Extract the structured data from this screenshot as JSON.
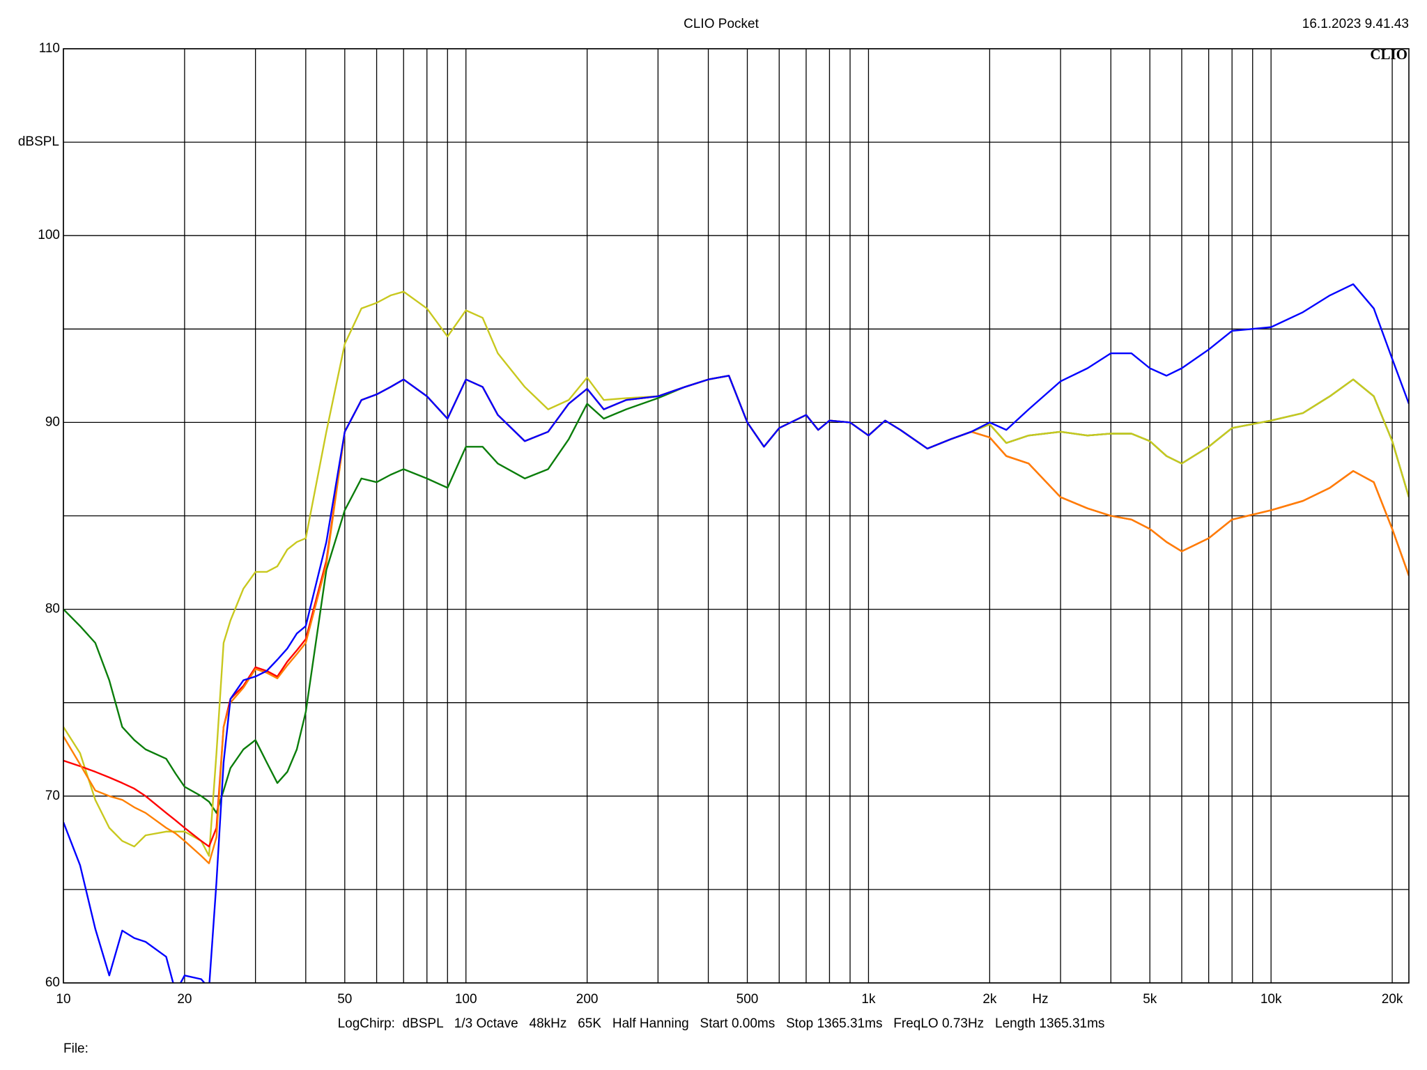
{
  "chart_data": {
    "type": "line",
    "title": "CLIO Pocket",
    "timestamp": "16.1.2023 9.41.43",
    "logo": "CLIO",
    "ylabel": "dBSPL",
    "xlabel": "Hz",
    "footer": "LogChirp:  dBSPL   1/3 Octave   48kHz   65K   Half Hanning   Start 0.00ms   Stop 1365.31ms   FreqLO 0.73Hz   Length 1365.31ms",
    "file_label": "File:",
    "xscale": "log",
    "grid": true,
    "xlim": [
      10,
      22000
    ],
    "ylim": [
      60,
      110
    ],
    "xticks": [
      10,
      20,
      50,
      100,
      200,
      500,
      {
        "value": 1000,
        "label": "1k"
      },
      {
        "value": 2000,
        "label": "2k"
      },
      {
        "value": 5000,
        "label": "5k"
      },
      {
        "value": 10000,
        "label": "10k"
      },
      {
        "value": 20000,
        "label": "20k"
      }
    ],
    "xgrid_minor": [
      30,
      40,
      60,
      70,
      80,
      90,
      300,
      400,
      600,
      700,
      800,
      900,
      3000,
      4000,
      6000,
      7000,
      8000,
      9000
    ],
    "yticks": [
      60,
      70,
      80,
      90,
      100,
      110
    ],
    "ygrid_minor": [
      65,
      75,
      85,
      95,
      105
    ],
    "x": [
      10,
      11,
      12,
      13,
      14,
      15,
      16,
      18,
      19,
      20,
      22,
      23,
      24,
      25,
      26,
      28,
      30,
      32,
      34,
      36,
      38,
      40,
      45,
      50,
      55,
      60,
      65,
      70,
      80,
      90,
      100,
      110,
      120,
      140,
      160,
      180,
      200,
      220,
      250,
      300,
      350,
      400,
      450,
      500,
      550,
      600,
      700,
      750,
      800,
      900,
      1000,
      1100,
      1200,
      1400,
      1600,
      1800,
      2000,
      2200,
      2500,
      3000,
      3500,
      4000,
      4500,
      5000,
      5500,
      6000,
      7000,
      8000,
      10000,
      12000,
      14000,
      16000,
      18000,
      20000,
      22000
    ],
    "series": [
      {
        "color": "#0a7d0a",
        "values": [
          80.0,
          79.1,
          78.2,
          76.2,
          73.7,
          73.0,
          72.5,
          72.0,
          71.2,
          70.5,
          70.0,
          69.7,
          69.1,
          70.3,
          71.5,
          72.5,
          73.0,
          71.8,
          70.7,
          71.3,
          72.5,
          74.5,
          82.1,
          85.3,
          87.0,
          86.8,
          87.2,
          87.5,
          87.0,
          86.5,
          88.7,
          88.7,
          87.8,
          87.0,
          87.5,
          89.1,
          91.0,
          90.2,
          90.7,
          91.3,
          91.9,
          92.3,
          92.5,
          90.0,
          88.7,
          89.7,
          90.4,
          89.6,
          90.1,
          90.0,
          89.3,
          90.1,
          89.6,
          88.6,
          89.1,
          89.5,
          89.9,
          88.9,
          89.3,
          89.5,
          89.3,
          89.4,
          89.4,
          89.0,
          88.2,
          87.8,
          88.7,
          89.7,
          90.1,
          90.5,
          91.4,
          92.3,
          91.4,
          89.0,
          86.0
        ]
      },
      {
        "color": "#c8c81e",
        "values": [
          73.7,
          72.3,
          69.8,
          68.3,
          67.6,
          67.3,
          67.9,
          68.1,
          68.1,
          68.1,
          67.6,
          66.8,
          72.3,
          78.2,
          79.4,
          81.1,
          82.0,
          82.0,
          82.3,
          83.2,
          83.6,
          83.8,
          89.5,
          94.2,
          96.1,
          96.4,
          96.8,
          97.0,
          96.1,
          94.6,
          96.0,
          95.6,
          93.7,
          91.9,
          90.7,
          91.2,
          92.4,
          91.2,
          91.3,
          91.4,
          91.9,
          92.3,
          92.5,
          90.0,
          88.7,
          89.7,
          90.4,
          89.6,
          90.1,
          90.0,
          89.3,
          90.1,
          89.6,
          88.6,
          89.1,
          89.5,
          89.9,
          88.9,
          89.3,
          89.5,
          89.3,
          89.4,
          89.4,
          89.0,
          88.2,
          87.8,
          88.7,
          89.7,
          90.1,
          90.5,
          91.4,
          92.3,
          91.4,
          89.0,
          86.0
        ]
      },
      {
        "color": "#ff0000",
        "values": [
          71.9,
          71.6,
          71.3,
          71.0,
          70.7,
          70.4,
          70.0,
          69.1,
          68.7,
          68.3,
          67.6,
          67.3,
          68.3,
          73.7,
          75.2,
          75.9,
          76.9,
          76.7,
          76.4,
          77.2,
          77.8,
          78.4,
          82.6,
          89.5,
          91.2,
          91.5,
          91.9,
          92.3,
          91.4,
          90.2,
          92.3,
          91.9,
          90.4,
          89.0,
          89.5,
          91.0,
          91.8,
          90.7,
          91.2,
          91.4,
          91.9,
          92.3,
          92.5,
          90.0,
          88.7,
          89.7,
          90.4,
          89.6,
          90.1,
          90.0,
          89.3,
          90.1,
          89.6,
          88.6,
          89.1,
          89.5,
          89.2,
          88.2,
          87.8,
          86.0,
          85.4,
          85.0,
          84.8,
          84.3,
          83.6,
          83.1,
          83.8,
          84.8,
          85.3,
          85.8,
          86.5,
          87.4,
          86.8,
          84.3,
          81.8
        ]
      },
      {
        "color": "#ff7f00",
        "values": [
          73.2,
          71.7,
          70.3,
          70.0,
          69.8,
          69.4,
          69.1,
          68.3,
          68.0,
          67.6,
          66.8,
          66.4,
          67.8,
          73.7,
          75.0,
          75.8,
          76.8,
          76.6,
          76.3,
          77.0,
          77.6,
          78.2,
          82.4,
          89.5,
          91.2,
          91.5,
          91.9,
          92.3,
          91.4,
          90.2,
          92.3,
          91.9,
          90.4,
          89.0,
          89.5,
          91.0,
          91.8,
          90.7,
          91.2,
          91.4,
          91.9,
          92.3,
          92.5,
          90.0,
          88.7,
          89.7,
          90.4,
          89.6,
          90.1,
          90.0,
          89.3,
          90.1,
          89.6,
          88.6,
          89.1,
          89.5,
          89.2,
          88.2,
          87.8,
          86.0,
          85.4,
          85.0,
          84.8,
          84.3,
          83.6,
          83.1,
          83.8,
          84.8,
          85.3,
          85.8,
          86.5,
          87.4,
          86.8,
          84.3,
          81.8
        ]
      },
      {
        "color": "#0000ff",
        "values": [
          68.6,
          66.3,
          62.9,
          60.4,
          62.8,
          62.4,
          62.2,
          61.4,
          59.5,
          60.4,
          60.2,
          59.7,
          65.4,
          71.8,
          75.2,
          76.2,
          76.4,
          76.7,
          77.3,
          77.9,
          78.7,
          79.1,
          83.6,
          89.5,
          91.2,
          91.5,
          91.9,
          92.3,
          91.4,
          90.2,
          92.3,
          91.9,
          90.4,
          89.0,
          89.5,
          91.0,
          91.8,
          90.7,
          91.2,
          91.4,
          91.9,
          92.3,
          92.5,
          90.0,
          88.7,
          89.7,
          90.4,
          89.6,
          90.1,
          90.0,
          89.3,
          90.1,
          89.6,
          88.6,
          89.1,
          89.5,
          90.0,
          89.6,
          90.7,
          92.2,
          92.9,
          93.7,
          93.7,
          92.9,
          92.5,
          92.9,
          93.9,
          94.9,
          95.1,
          95.9,
          96.8,
          97.4,
          96.1,
          93.4,
          91.0
        ]
      }
    ]
  }
}
